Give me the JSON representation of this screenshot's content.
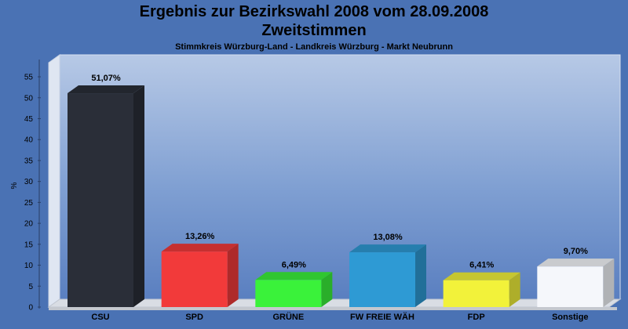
{
  "title": "Ergebnis zur Bezirkswahl 2008 vom 28.09.2008",
  "subtitle": "Zweitstimmen",
  "caption": "Stimmkreis Würzburg-Land - Landkreis Würzburg - Markt Neubrunn",
  "chart_data": {
    "type": "bar",
    "title": "Ergebnis zur Bezirkswahl 2008 vom 28.09.2008",
    "subtitle": "Zweitstimmen",
    "ylabel": "%",
    "xlabel": "",
    "ylim": [
      0,
      58
    ],
    "yticks": [
      0,
      5,
      10,
      15,
      20,
      25,
      30,
      35,
      40,
      45,
      50,
      55
    ],
    "grid": false,
    "categories": [
      "CSU",
      "SPD",
      "GRÜNE",
      "FW FREIE WÄH",
      "FDP",
      "Sonstige"
    ],
    "values": [
      51.07,
      13.26,
      6.49,
      13.08,
      6.41,
      9.7
    ],
    "value_labels": [
      "51,07%",
      "13,26%",
      "6,49%",
      "13,08%",
      "6,41%",
      "9,70%"
    ],
    "colors": [
      "#2a2e38",
      "#f23a3a",
      "#3af23a",
      "#2e9ad4",
      "#f2f23a",
      "#f5f7fb"
    ]
  }
}
